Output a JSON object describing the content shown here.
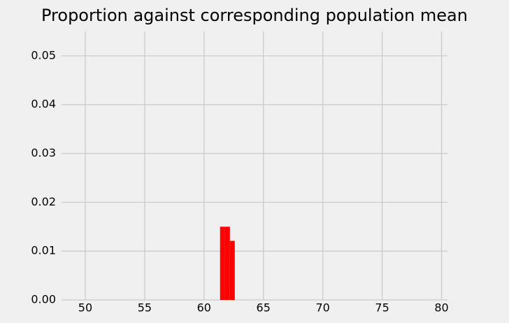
{
  "chart_data": {
    "type": "histogram",
    "title": "Proportion against corresponding population mean",
    "bins": [
      61.35,
      61.76,
      62.18,
      62.59
    ],
    "values": [
      0.015,
      0.015,
      0.0121
    ],
    "color": "#ff0000",
    "xlim": [
      48,
      80.5
    ],
    "xticks": [
      50,
      55,
      60,
      65,
      70,
      75,
      80
    ],
    "ylim": [
      0,
      0.055
    ],
    "yticks": [
      {
        "value": 0,
        "label": "0.00"
      },
      0.01,
      0.02,
      0.03,
      0.04,
      0.05
    ],
    "grid": true
  }
}
